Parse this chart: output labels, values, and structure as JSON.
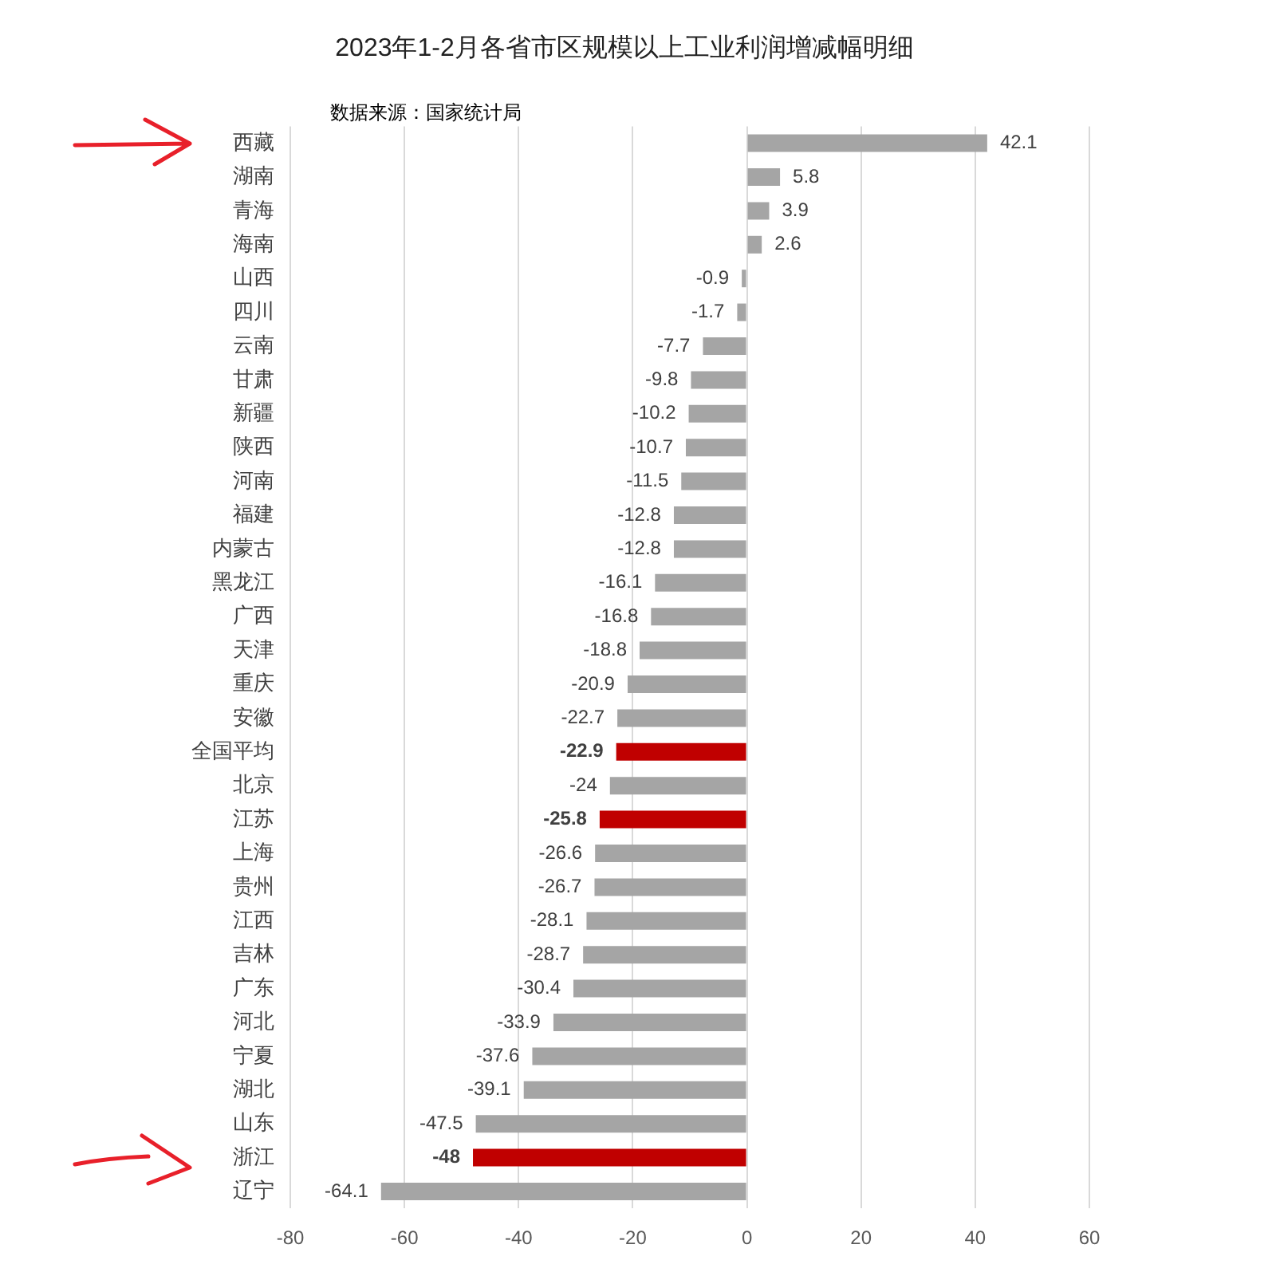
{
  "chart_data": {
    "type": "bar",
    "orientation": "horizontal",
    "title": "2023年1-2月各省市区规模以上工业利润增减幅明细",
    "categories": [
      "西藏",
      "湖南",
      "青海",
      "海南",
      "山西",
      "四川",
      "云南",
      "甘肃",
      "新疆",
      "陕西",
      "河南",
      "福建",
      "内蒙古",
      "黑龙江",
      "广西",
      "天津",
      "重庆",
      "安徽",
      "全国平均",
      "北京",
      "江苏",
      "上海",
      "贵州",
      "江西",
      "吉林",
      "广东",
      "河北",
      "宁夏",
      "湖北",
      "山东",
      "浙江",
      "辽宁"
    ],
    "values": [
      42.1,
      5.8,
      3.9,
      2.6,
      -0.9,
      -1.7,
      -7.7,
      -9.8,
      -10.2,
      -10.7,
      -11.5,
      -12.8,
      -12.8,
      -16.1,
      -16.8,
      -18.8,
      -20.9,
      -22.7,
      -22.9,
      -24,
      -25.8,
      -26.6,
      -26.7,
      -28.1,
      -28.7,
      -30.4,
      -33.9,
      -37.6,
      -39.1,
      -47.5,
      -48,
      -64.1
    ],
    "colors": [
      "#a5a5a5",
      "#a5a5a5",
      "#a5a5a5",
      "#a5a5a5",
      "#a5a5a5",
      "#a5a5a5",
      "#a5a5a5",
      "#a5a5a5",
      "#a5a5a5",
      "#a5a5a5",
      "#a5a5a5",
      "#a5a5a5",
      "#a5a5a5",
      "#a5a5a5",
      "#a5a5a5",
      "#a5a5a5",
      "#a5a5a5",
      "#a5a5a5",
      "#c00000",
      "#a5a5a5",
      "#c00000",
      "#a5a5a5",
      "#a5a5a5",
      "#a5a5a5",
      "#a5a5a5",
      "#a5a5a5",
      "#a5a5a5",
      "#a5a5a5",
      "#a5a5a5",
      "#a5a5a5",
      "#c00000",
      "#a5a5a5"
    ],
    "xlim": [
      -80,
      60
    ],
    "xticks": [
      -80,
      -60,
      -40,
      -20,
      0,
      20,
      40,
      60
    ],
    "grid": "x",
    "legend": false,
    "data_labels": true,
    "annotations": [
      "数据来源：国家统计局"
    ]
  }
}
